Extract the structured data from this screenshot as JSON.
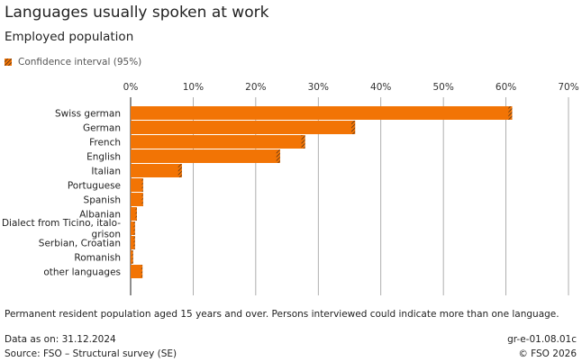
{
  "header": {
    "title": "Languages usually spoken at work",
    "subtitle": "Employed population"
  },
  "legend": {
    "ci_label": "Confidence interval (95%)"
  },
  "colors": {
    "bar": "#f27405",
    "ci": "#3a2a1a",
    "grid": "#9a9a9a",
    "axis": "#444444"
  },
  "chart_data": {
    "type": "bar",
    "orientation": "horizontal",
    "title": "Languages usually spoken at work",
    "subtitle": "Employed population",
    "xlabel": "",
    "ylabel": "",
    "xlim": [
      0,
      70
    ],
    "ticks": [
      0,
      10,
      20,
      30,
      40,
      50,
      60,
      70
    ],
    "tick_labels": [
      "0%",
      "10%",
      "20%",
      "30%",
      "40%",
      "50%",
      "60%",
      "70%"
    ],
    "categories": [
      [
        "Swiss german"
      ],
      [
        "German"
      ],
      [
        "French"
      ],
      [
        "English"
      ],
      [
        "Italian"
      ],
      [
        "Portuguese"
      ],
      [
        "Spanish"
      ],
      [
        "Albanian"
      ],
      [
        "Dialect from Ticino, italo-",
        "grison"
      ],
      [
        "Serbian, Croatian"
      ],
      [
        "Romanish"
      ],
      [
        "other languages"
      ]
    ],
    "values": [
      60.7,
      35.6,
      27.6,
      23.6,
      7.9,
      1.9,
      1.9,
      0.9,
      0.6,
      0.6,
      0.3,
      1.8
    ],
    "ci_low": [
      60.4,
      35.3,
      27.3,
      23.3,
      7.6,
      1.8,
      1.8,
      0.8,
      0.5,
      0.5,
      0.2,
      1.7
    ],
    "ci_high": [
      61.0,
      35.9,
      27.9,
      23.9,
      8.2,
      2.0,
      2.0,
      1.0,
      0.7,
      0.7,
      0.4,
      1.9
    ],
    "legend": [
      "Confidence interval (95%)"
    ],
    "grid": true
  },
  "notes": {
    "population_note": "Permanent resident population aged 15 years and over. Persons interviewed could indicate more than one language."
  },
  "footer": {
    "data_as_on": "Data as on: 31.12.2024",
    "source": "Source: FSO – Structural survey (SE)",
    "code": "gr-e-01.08.01c",
    "copyright": "© FSO 2026"
  }
}
